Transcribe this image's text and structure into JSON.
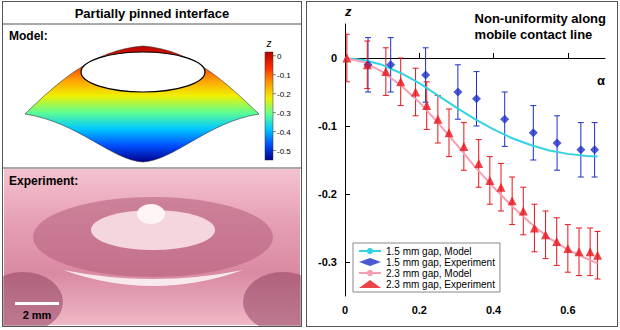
{
  "left_panel": {
    "title": "Partially pinned interface",
    "model": {
      "label": "Model:",
      "colorbar": {
        "title": "z",
        "range": [
          -0.55,
          0.02
        ],
        "ticks": [
          0,
          -0.1,
          -0.2,
          -0.3,
          -0.4,
          -0.5
        ]
      }
    },
    "experiment": {
      "label": "Experiment:",
      "scale_bar": "2 mm"
    }
  },
  "chart_data": {
    "type": "scatter",
    "title": "Non-uniformity along mobile contact line",
    "xlabel": "α",
    "ylabel": "z",
    "xlim": [
      0,
      0.7
    ],
    "xticks": [
      0,
      0.2,
      0.4,
      0.6
    ],
    "ylim": [
      -0.35,
      0.05
    ],
    "yticks": [
      0,
      -0.1,
      -0.2,
      -0.3
    ],
    "grid": false,
    "legend": "lower left",
    "series": [
      {
        "name": "1.5 mm gap, Model",
        "type": "line",
        "line_style": "solid",
        "color": "#33d3e3",
        "x": [
          0,
          0.05,
          0.1,
          0.15,
          0.2,
          0.25,
          0.3,
          0.35,
          0.4,
          0.45,
          0.5,
          0.55,
          0.6,
          0.65,
          0.68
        ],
        "values": [
          0,
          -0.003,
          -0.01,
          -0.022,
          -0.037,
          -0.055,
          -0.073,
          -0.09,
          -0.105,
          -0.118,
          -0.128,
          -0.136,
          -0.141,
          -0.144,
          -0.145
        ]
      },
      {
        "name": "1.5 mm gap, Experiment",
        "type": "scatter",
        "marker": "diamond",
        "color": "#1e2fc8",
        "x": [
          0.062,
          0.123,
          0.217,
          0.304,
          0.354,
          0.43,
          0.507,
          0.571,
          0.635,
          0.672
        ],
        "values": [
          -0.01,
          -0.01,
          -0.025,
          -0.05,
          -0.06,
          -0.09,
          -0.11,
          -0.125,
          -0.135,
          -0.135
        ],
        "errors": [
          0.04,
          0.04,
          0.04,
          0.04,
          0.04,
          0.04,
          0.04,
          0.04,
          0.04,
          0.04
        ]
      },
      {
        "name": "2.3 mm gap, Model",
        "type": "line",
        "line_style": "solid",
        "color": "#f4a0b4",
        "x": [
          0,
          0.05,
          0.1,
          0.15,
          0.2,
          0.25,
          0.3,
          0.35,
          0.4,
          0.45,
          0.5,
          0.55,
          0.6,
          0.65,
          0.68
        ],
        "values": [
          0,
          -0.006,
          -0.02,
          -0.04,
          -0.065,
          -0.095,
          -0.127,
          -0.16,
          -0.19,
          -0.218,
          -0.243,
          -0.265,
          -0.282,
          -0.295,
          -0.302
        ]
      },
      {
        "name": "2.3 mm gap, Experiment",
        "type": "scatter",
        "marker": "triangle",
        "color": "#e8141b",
        "x": [
          0.005,
          0.06,
          0.11,
          0.15,
          0.19,
          0.22,
          0.25,
          0.28,
          0.32,
          0.36,
          0.39,
          0.42,
          0.45,
          0.48,
          0.51,
          0.54,
          0.57,
          0.6,
          0.63,
          0.66,
          0.68
        ],
        "values": [
          0,
          -0.01,
          -0.02,
          -0.035,
          -0.05,
          -0.07,
          -0.09,
          -0.11,
          -0.13,
          -0.155,
          -0.18,
          -0.19,
          -0.21,
          -0.225,
          -0.25,
          -0.26,
          -0.27,
          -0.28,
          -0.285,
          -0.285,
          -0.29
        ],
        "errors": [
          0.035,
          0.035,
          0.035,
          0.035,
          0.035,
          0.035,
          0.035,
          0.035,
          0.035,
          0.035,
          0.035,
          0.035,
          0.035,
          0.035,
          0.035,
          0.035,
          0.035,
          0.035,
          0.035,
          0.035,
          0.035
        ]
      }
    ]
  }
}
